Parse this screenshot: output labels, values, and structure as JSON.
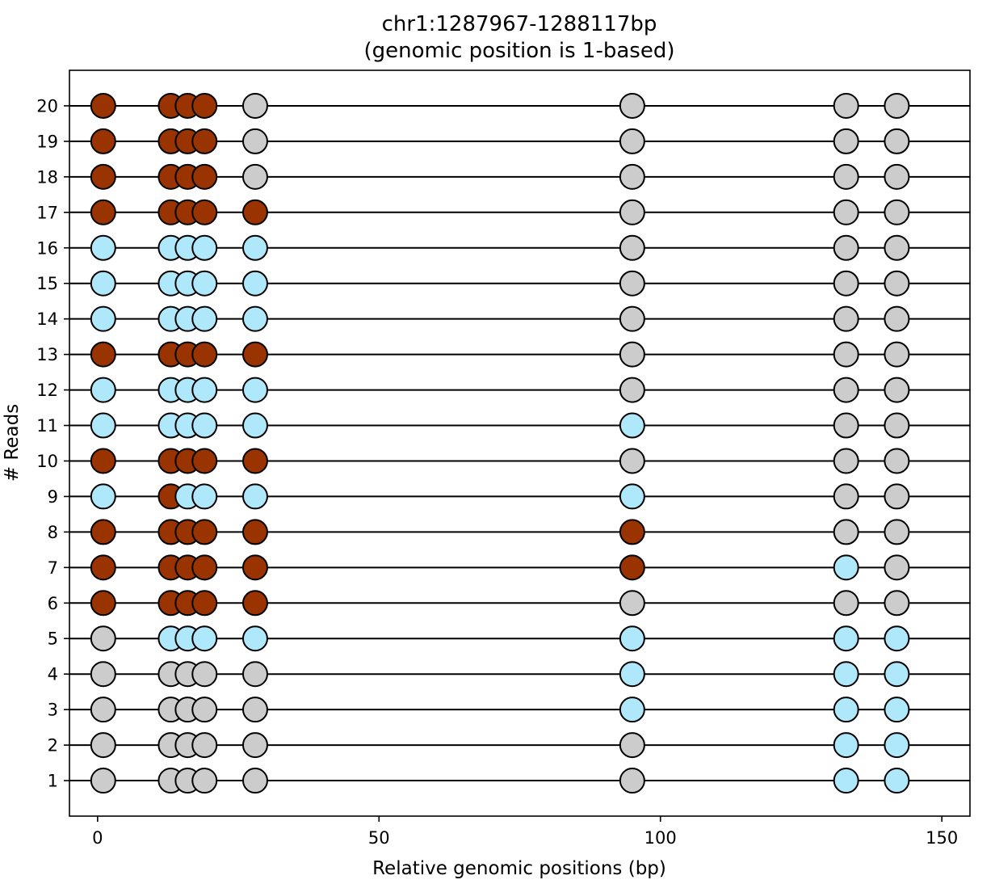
{
  "chart_data": {
    "type": "scatter",
    "title_line1": "chr1:1287967-1288117bp",
    "title_line2": "(genomic position is 1-based)",
    "xlabel": "Relative genomic positions (bp)",
    "ylabel": "# Reads",
    "xlim": [
      -5,
      155
    ],
    "ylim": [
      0,
      21
    ],
    "x_ticks": [
      0,
      50,
      100,
      150
    ],
    "y_ticks": [
      1,
      2,
      3,
      4,
      5,
      6,
      7,
      8,
      9,
      10,
      11,
      12,
      13,
      14,
      15,
      16,
      17,
      18,
      19,
      20
    ],
    "grid": false,
    "legend": "none",
    "colors": {
      "methylated": "#993300",
      "unmethylated": "#aee8fa",
      "no_data": "#cccccc",
      "outline": "#000000"
    },
    "positions": [
      1,
      13,
      16,
      19,
      28,
      95,
      133,
      142
    ],
    "reads": [
      {
        "read": 1,
        "states": [
          "no_data",
          "no_data",
          "no_data",
          "no_data",
          "no_data",
          "no_data",
          "unmethylated",
          "unmethylated"
        ]
      },
      {
        "read": 2,
        "states": [
          "no_data",
          "no_data",
          "no_data",
          "no_data",
          "no_data",
          "no_data",
          "unmethylated",
          "unmethylated"
        ]
      },
      {
        "read": 3,
        "states": [
          "no_data",
          "no_data",
          "no_data",
          "no_data",
          "no_data",
          "unmethylated",
          "unmethylated",
          "unmethylated"
        ]
      },
      {
        "read": 4,
        "states": [
          "no_data",
          "no_data",
          "no_data",
          "no_data",
          "no_data",
          "unmethylated",
          "unmethylated",
          "unmethylated"
        ]
      },
      {
        "read": 5,
        "states": [
          "no_data",
          "unmethylated",
          "unmethylated",
          "unmethylated",
          "unmethylated",
          "unmethylated",
          "unmethylated",
          "unmethylated"
        ]
      },
      {
        "read": 6,
        "states": [
          "methylated",
          "methylated",
          "methylated",
          "methylated",
          "methylated",
          "no_data",
          "no_data",
          "no_data"
        ]
      },
      {
        "read": 7,
        "states": [
          "methylated",
          "methylated",
          "methylated",
          "methylated",
          "methylated",
          "methylated",
          "unmethylated",
          "no_data"
        ]
      },
      {
        "read": 8,
        "states": [
          "methylated",
          "methylated",
          "methylated",
          "methylated",
          "methylated",
          "methylated",
          "no_data",
          "no_data"
        ]
      },
      {
        "read": 9,
        "states": [
          "unmethylated",
          "methylated",
          "unmethylated",
          "unmethylated",
          "unmethylated",
          "unmethylated",
          "no_data",
          "no_data"
        ]
      },
      {
        "read": 10,
        "states": [
          "methylated",
          "methylated",
          "methylated",
          "methylated",
          "methylated",
          "no_data",
          "no_data",
          "no_data"
        ]
      },
      {
        "read": 11,
        "states": [
          "unmethylated",
          "unmethylated",
          "unmethylated",
          "unmethylated",
          "unmethylated",
          "unmethylated",
          "no_data",
          "no_data"
        ]
      },
      {
        "read": 12,
        "states": [
          "unmethylated",
          "unmethylated",
          "unmethylated",
          "unmethylated",
          "unmethylated",
          "no_data",
          "no_data",
          "no_data"
        ]
      },
      {
        "read": 13,
        "states": [
          "methylated",
          "methylated",
          "methylated",
          "methylated",
          "methylated",
          "no_data",
          "no_data",
          "no_data"
        ]
      },
      {
        "read": 14,
        "states": [
          "unmethylated",
          "unmethylated",
          "unmethylated",
          "unmethylated",
          "unmethylated",
          "no_data",
          "no_data",
          "no_data"
        ]
      },
      {
        "read": 15,
        "states": [
          "unmethylated",
          "unmethylated",
          "unmethylated",
          "unmethylated",
          "unmethylated",
          "no_data",
          "no_data",
          "no_data"
        ]
      },
      {
        "read": 16,
        "states": [
          "unmethylated",
          "unmethylated",
          "unmethylated",
          "unmethylated",
          "unmethylated",
          "no_data",
          "no_data",
          "no_data"
        ]
      },
      {
        "read": 17,
        "states": [
          "methylated",
          "methylated",
          "methylated",
          "methylated",
          "methylated",
          "no_data",
          "no_data",
          "no_data"
        ]
      },
      {
        "read": 18,
        "states": [
          "methylated",
          "methylated",
          "methylated",
          "methylated",
          "no_data",
          "no_data",
          "no_data",
          "no_data"
        ]
      },
      {
        "read": 19,
        "states": [
          "methylated",
          "methylated",
          "methylated",
          "methylated",
          "no_data",
          "no_data",
          "no_data",
          "no_data"
        ]
      },
      {
        "read": 20,
        "states": [
          "methylated",
          "methylated",
          "methylated",
          "methylated",
          "no_data",
          "no_data",
          "no_data",
          "no_data"
        ]
      }
    ]
  }
}
